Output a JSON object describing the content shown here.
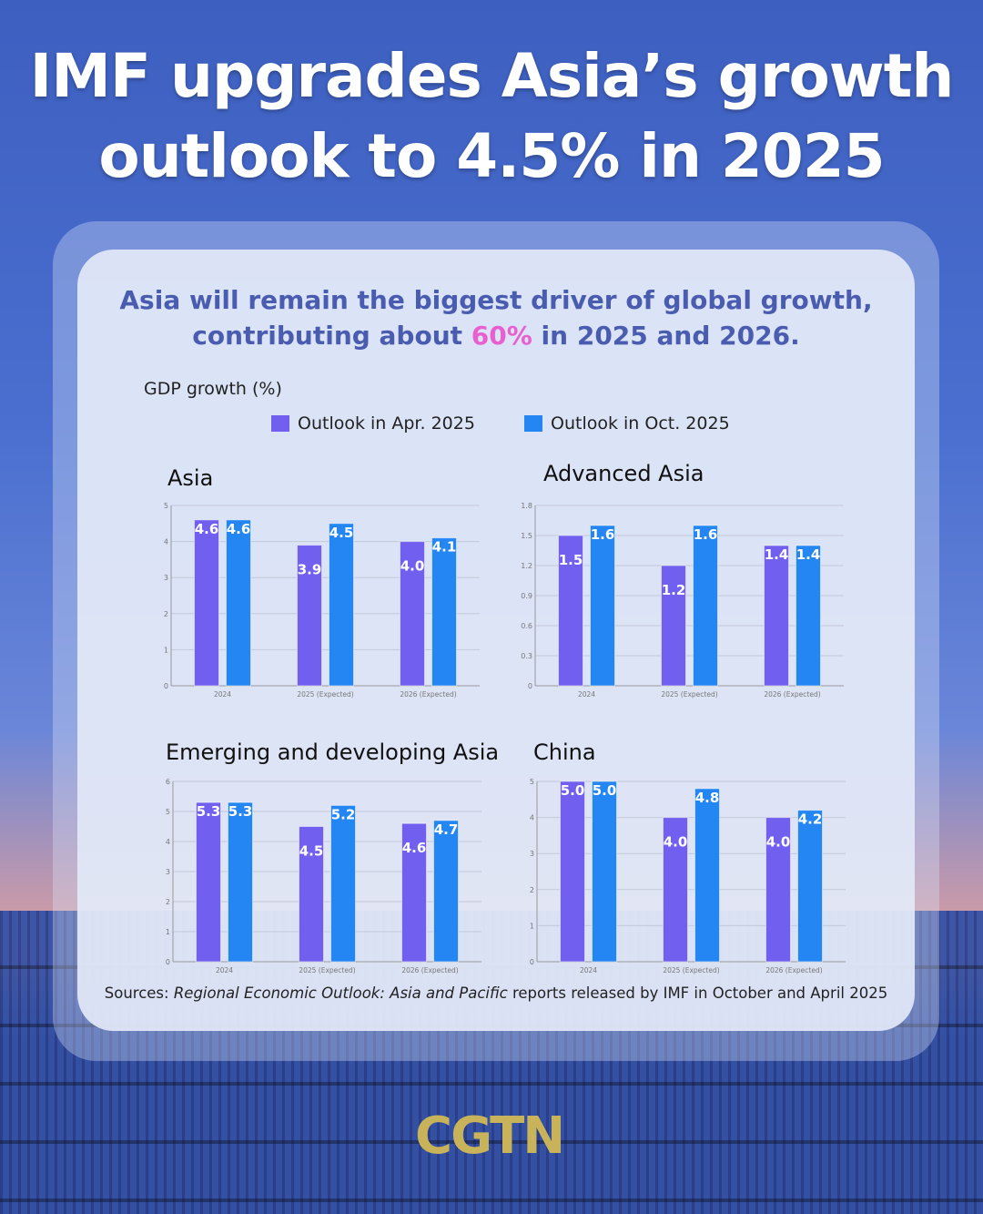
{
  "title": "IMF upgrades Asia’s growth outlook to 4.5% in 2025",
  "subtitle": {
    "line1": "Asia will remain the biggest driver of global growth,",
    "line2_pre": "contributing about ",
    "line2_highlight": "60%",
    "line2_post": " in 2025 and 2026."
  },
  "y_axis_label": "GDP growth (%)",
  "legend": [
    {
      "label": "Outlook in Apr. 2025",
      "color": "#7160ef"
    },
    {
      "label": "Outlook in Oct. 2025",
      "color": "#2386f2"
    }
  ],
  "source": {
    "pre": "Sources: ",
    "italic": "Regional Economic Outlook: Asia and Pacific",
    "post": " reports released by IMF in October and April 2025"
  },
  "logo": "CGTN",
  "chart_data": [
    {
      "type": "bar",
      "title": "Asia",
      "categories": [
        "2024",
        "2025 (Expected)",
        "2026 (Expected)"
      ],
      "ylim": [
        0,
        5
      ],
      "yticks": [
        "0",
        "1",
        "2",
        "3",
        "4",
        "5"
      ],
      "grid": true,
      "series": [
        {
          "name": "Outlook in Apr. 2025",
          "values": [
            4.6,
            3.9,
            4.0
          ]
        },
        {
          "name": "Outlook in Oct. 2025",
          "values": [
            4.6,
            4.5,
            4.1
          ]
        }
      ]
    },
    {
      "type": "bar",
      "title": "Advanced Asia",
      "categories": [
        "2024",
        "2025 (Expected)",
        "2026 (Expected)"
      ],
      "ylim": [
        0,
        1.8
      ],
      "yticks": [
        "0",
        "0.3",
        "0.6",
        "0.9",
        "1.2",
        "1.5",
        "1.8"
      ],
      "grid": true,
      "series": [
        {
          "name": "Outlook in Apr. 2025",
          "values": [
            1.5,
            1.2,
            1.4
          ]
        },
        {
          "name": "Outlook in Oct. 2025",
          "values": [
            1.6,
            1.6,
            1.4
          ]
        }
      ]
    },
    {
      "type": "bar",
      "title": "Emerging and developing Asia",
      "categories": [
        "2024",
        "2025 (Expected)",
        "2026 (Expected)"
      ],
      "ylim": [
        0,
        6
      ],
      "yticks": [
        "0",
        "1",
        "2",
        "3",
        "4",
        "5",
        "6"
      ],
      "grid": true,
      "series": [
        {
          "name": "Outlook in Apr. 2025",
          "values": [
            5.3,
            4.5,
            4.6
          ]
        },
        {
          "name": "Outlook in Oct. 2025",
          "values": [
            5.3,
            5.2,
            4.7
          ]
        }
      ]
    },
    {
      "type": "bar",
      "title": "China",
      "categories": [
        "2024",
        "2025 (Expected)",
        "2026 (Expected)"
      ],
      "ylim": [
        0,
        5
      ],
      "yticks": [
        "0",
        "1",
        "2",
        "3",
        "4",
        "5"
      ],
      "grid": true,
      "series": [
        {
          "name": "Outlook in Apr. 2025",
          "values": [
            5.0,
            4.0,
            4.0
          ]
        },
        {
          "name": "Outlook in Oct. 2025",
          "values": [
            5.0,
            4.8,
            4.2
          ]
        }
      ]
    }
  ]
}
